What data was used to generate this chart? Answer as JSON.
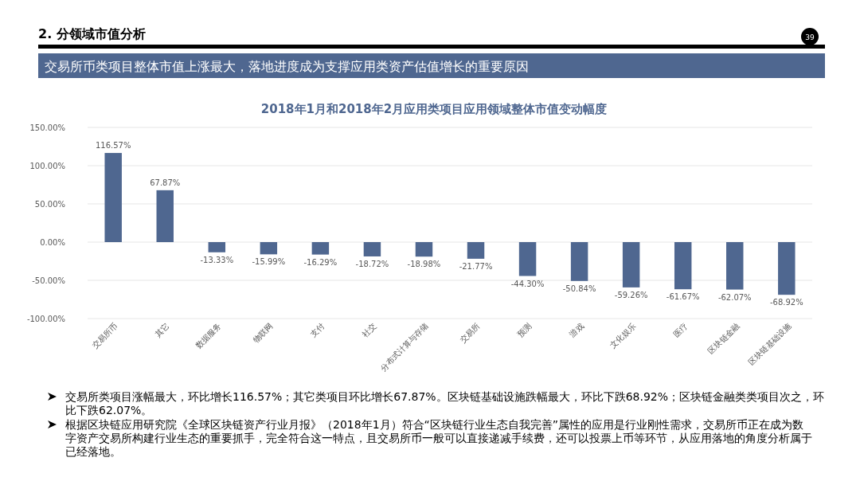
{
  "chart_data": {
    "type": "bar",
    "title": "2018年1月和2018年2月应用类项目应用领域整体市值变动幅度",
    "categories": [
      "交易所币",
      "其它",
      "数据服务",
      "物联网",
      "支付",
      "社交",
      "分布式计算与存储",
      "交易所",
      "预测",
      "游戏",
      "文化娱乐",
      "医疗",
      "区块链金融",
      "区块链基础设施"
    ],
    "values": [
      116.57,
      67.87,
      -13.33,
      -15.99,
      -16.29,
      -18.72,
      -18.98,
      -21.77,
      -44.3,
      -50.84,
      -59.26,
      -61.67,
      -62.07,
      -68.92
    ],
    "value_labels": [
      "116.57%",
      "67.87%",
      "-13.33%",
      "-15.99%",
      "-16.29%",
      "-18.72%",
      "-18.98%",
      "-21.77%",
      "-44.30%",
      "-50.84%",
      "-59.26%",
      "-61.67%",
      "-62.07%",
      "-68.92%"
    ],
    "color": "#4f6790",
    "ylim": [
      -100,
      150
    ],
    "yticks": [
      {
        "value": -100,
        "label": "-100.00%"
      },
      {
        "value": -50,
        "label": "-50.00%"
      },
      {
        "value": 0,
        "label": "0.00%"
      },
      {
        "value": 50,
        "label": "50.00%"
      },
      {
        "value": 100,
        "label": "100.00%"
      },
      {
        "value": 150,
        "label": "150.00%"
      }
    ],
    "grid": "y",
    "annotations": [
      "2. 分领域市值分析",
      "39",
      "交易所币类项目整体市值上涨最大，落地进度成为支撑应用类资产估值增长的重要原因",
      "交易所类项目涨幅最大，环比增长116.57%；其它类项目环比增长67.87%。区块链基础设施跌幅最大，环比下跌68.92%；区块链金融类类项目次之，环比下跌62.07%。",
      "根据区块链应用研究院《全球区块链资产行业月报》（2018年1月）符合“区块链行业生态自我完善”属性的应用是行业刚性需求，交易所币正在成为数字资产交易所构建行业生态的重要抓手，完全符合这一特点，且交易所币一般可以直接递减手续费，还可以投票上币等环节，从应用落地的角度分析属于已经落地。"
    ]
  }
}
